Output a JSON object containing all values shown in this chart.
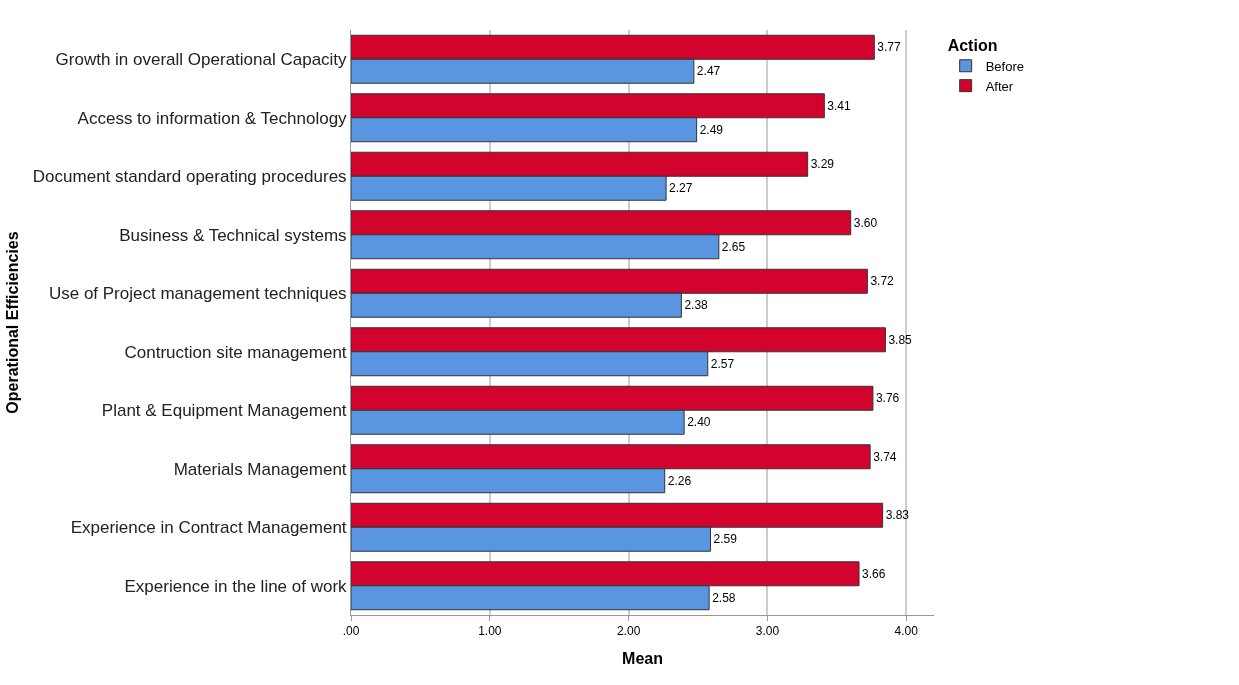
{
  "chart_data": {
    "type": "bar",
    "orientation": "horizontal",
    "xlabel": "Mean",
    "ylabel": "Operational Efficiencies",
    "legend_title": "Action",
    "categories": [
      "Growth in overall Operational Capacity",
      "Access to information & Technology",
      "Document standard operating procedures",
      "Business & Technical systems",
      "Use of Project management techniques",
      "Contruction site management",
      "Plant & Equipment Management",
      "Materials Management",
      "Experience in Contract Management",
      "Experience in the line of work"
    ],
    "series": [
      {
        "name": "Before",
        "color": "#5a95e2",
        "values": [
          2.47,
          2.49,
          2.27,
          2.65,
          2.38,
          2.57,
          2.4,
          2.26,
          2.59,
          2.58
        ],
        "value_labels": [
          "2.47",
          "2.49",
          "2.27",
          "2.65",
          "2.38",
          "2.57",
          "2.40",
          "2.26",
          "2.59",
          "2.58"
        ]
      },
      {
        "name": "After",
        "color": "#d2042d",
        "values": [
          3.77,
          3.41,
          3.29,
          3.6,
          3.72,
          3.85,
          3.76,
          3.74,
          3.83,
          3.66
        ],
        "value_labels": [
          "3.77",
          "3.41",
          "3.29",
          "3.60",
          "3.72",
          "3.85",
          "3.76",
          "3.74",
          "3.83",
          "3.66"
        ]
      }
    ],
    "xlim": [
      0,
      4.2
    ],
    "xticks": [
      {
        "value": 0,
        "label": ".00"
      },
      {
        "value": 1,
        "label": "1.00"
      },
      {
        "value": 2,
        "label": "2.00"
      },
      {
        "value": 3,
        "label": "3.00"
      },
      {
        "value": 4,
        "label": "4.00"
      }
    ],
    "grid": "x",
    "legend": "top right"
  }
}
